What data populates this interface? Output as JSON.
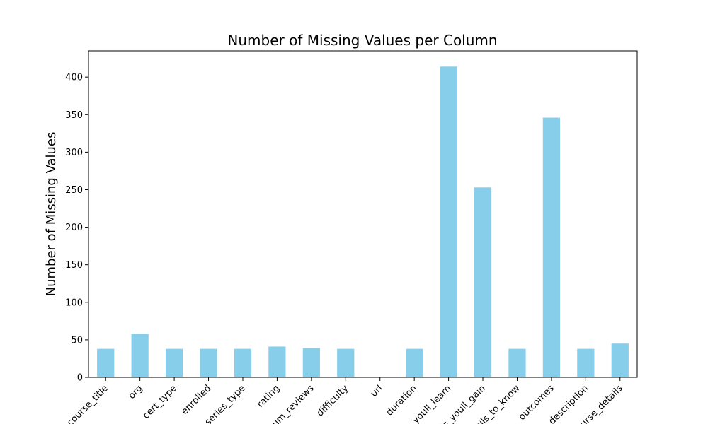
{
  "chart_data": {
    "type": "bar",
    "title": "Number of Missing Values per Column",
    "xlabel": "",
    "ylabel": "Number of Missing Values",
    "ylim": [
      0,
      435
    ],
    "yticks": [
      0,
      50,
      100,
      150,
      200,
      250,
      300,
      350,
      400
    ],
    "grid": false,
    "bar_color": "#87CEEB",
    "categories": [
      "course_title",
      "org",
      "cert_type",
      "enrolled",
      "series_type",
      "rating",
      "num_reviews",
      "difficulty",
      "url",
      "duration",
      "what_youll_learn",
      "skills_youll_gain",
      "details_to_know",
      "outcomes",
      "description",
      "course_details"
    ],
    "values": [
      38,
      58,
      38,
      38,
      38,
      41,
      39,
      38,
      0,
      38,
      414,
      253,
      38,
      346,
      38,
      45
    ]
  }
}
